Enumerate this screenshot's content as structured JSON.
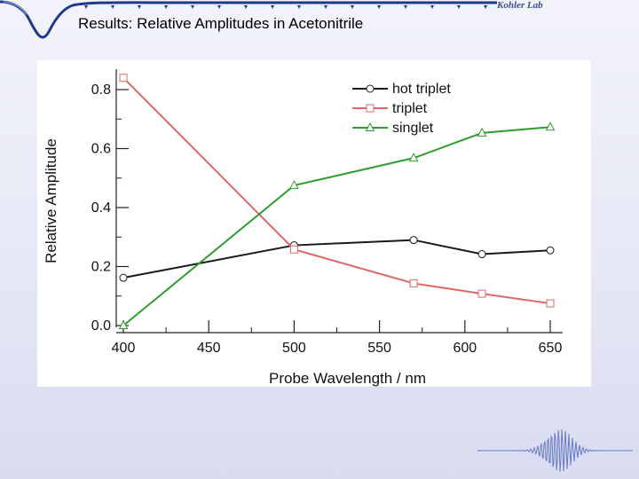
{
  "slide": {
    "title": "Results: Relative Amplitudes in Acetonitrile",
    "logo_text": "Kohler Lab"
  },
  "colors": {
    "hot_triplet": "#1a1a1a",
    "triplet": "#e06666",
    "singlet": "#2e9e2e",
    "logo": "#3b4f8c"
  },
  "chart_data": {
    "type": "line",
    "title": "",
    "xlabel": "Probe Wavelength / nm",
    "ylabel": "Relative Amplitude",
    "xlim": [
      400,
      655
    ],
    "ylim": [
      0.0,
      0.87
    ],
    "xticks": [
      400,
      450,
      500,
      550,
      600,
      650
    ],
    "yticks": [
      0.0,
      0.2,
      0.4,
      0.6,
      0.8
    ],
    "xtick_labels": [
      "400",
      "450",
      "500",
      "550",
      "600",
      "650"
    ],
    "ytick_labels": [
      "0.0",
      "0.2",
      "0.4",
      "0.6",
      "0.8"
    ],
    "legend_position": "top-right",
    "grid": false,
    "series": [
      {
        "name": "hot triplet",
        "marker": "circle",
        "color": "#1a1a1a",
        "x": [
          400,
          500,
          570,
          610,
          650
        ],
        "y": [
          0.162,
          0.272,
          0.29,
          0.242,
          0.255
        ]
      },
      {
        "name": "triplet",
        "marker": "square",
        "color": "#e06666",
        "x": [
          400,
          500,
          570,
          610,
          650
        ],
        "y": [
          0.84,
          0.258,
          0.143,
          0.108,
          0.075
        ]
      },
      {
        "name": "singlet",
        "marker": "triangle",
        "color": "#2e9e2e",
        "x": [
          400,
          500,
          570,
          610,
          650
        ],
        "y": [
          0.0,
          0.475,
          0.568,
          0.653,
          0.673
        ]
      }
    ]
  }
}
